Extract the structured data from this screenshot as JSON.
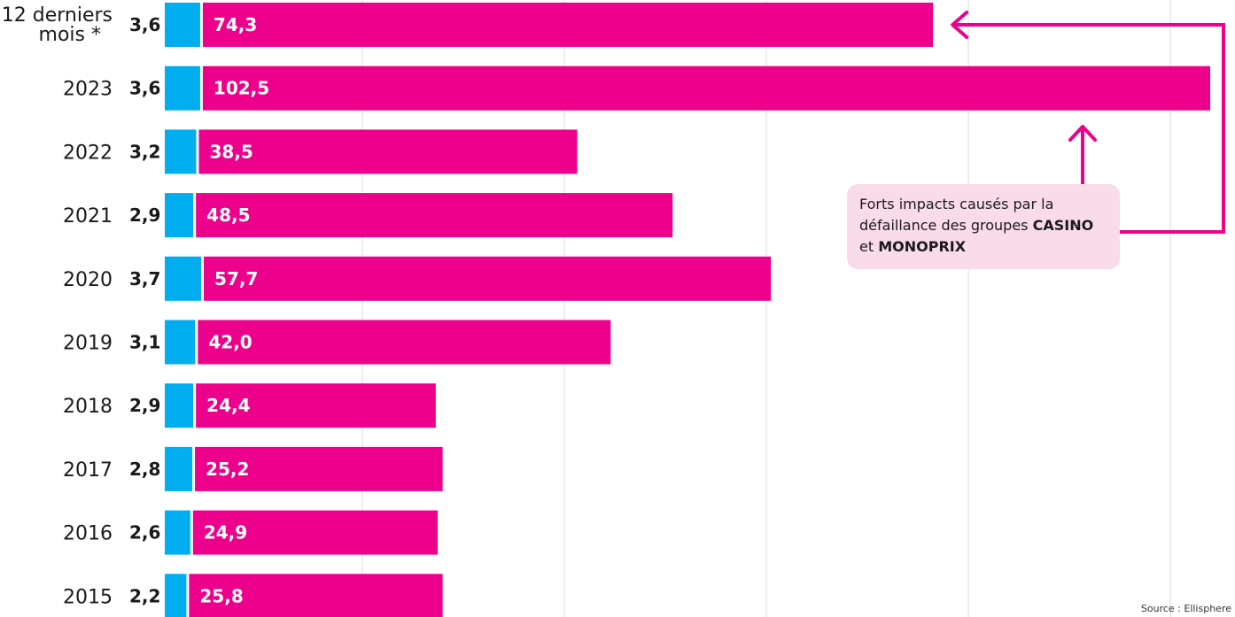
{
  "chart_data": {
    "type": "bar",
    "orientation": "horizontal",
    "stacked": true,
    "categories": [
      "12 derniers mois *",
      "2023",
      "2022",
      "2021",
      "2020",
      "2019",
      "2018",
      "2017",
      "2016",
      "2015"
    ],
    "series": [
      {
        "values": [
          3.6,
          3.6,
          3.2,
          2.9,
          3.7,
          3.1,
          2.9,
          2.8,
          2.6,
          2.2
        ],
        "color": "#00adef"
      },
      {
        "values": [
          74.3,
          102.5,
          38.5,
          48.5,
          57.7,
          42.0,
          24.4,
          25.2,
          24.9,
          25.8
        ],
        "color": "#ec008c"
      }
    ],
    "value_labels_blue": [
      "3,6",
      "3,6",
      "3,2",
      "2,9",
      "3,7",
      "3,1",
      "2,9",
      "2,8",
      "2,6",
      "2,2"
    ],
    "value_labels_pink": [
      "74,3",
      "102,5",
      "38,5",
      "48,5",
      "57,7",
      "42,0",
      "24,4",
      "25,2",
      "24,9",
      "25,8"
    ],
    "grid": true,
    "legend": "none",
    "title": "",
    "xlabel": "",
    "ylabel": ""
  },
  "category_label_lines": [
    [
      "12 derniers",
      "mois *"
    ],
    [
      "2023"
    ],
    [
      "2022"
    ],
    [
      "2021"
    ],
    [
      "2020"
    ],
    [
      "2019"
    ],
    [
      "2018"
    ],
    [
      "2017"
    ],
    [
      "2016"
    ],
    [
      "2015"
    ]
  ],
  "annotation": {
    "line1": "Forts impacts causés par la",
    "line2_prefix": "défaillance des groupes ",
    "line2_bold": "CASINO",
    "line3_prefix": "et ",
    "line3_bold": "MONOPRIX",
    "color": "#ec008c",
    "background": "#fadbe9"
  },
  "source": "Source : Ellisphere",
  "colors": {
    "blue": "#00adef",
    "pink": "#ec008c",
    "grid": "#dddddd"
  }
}
